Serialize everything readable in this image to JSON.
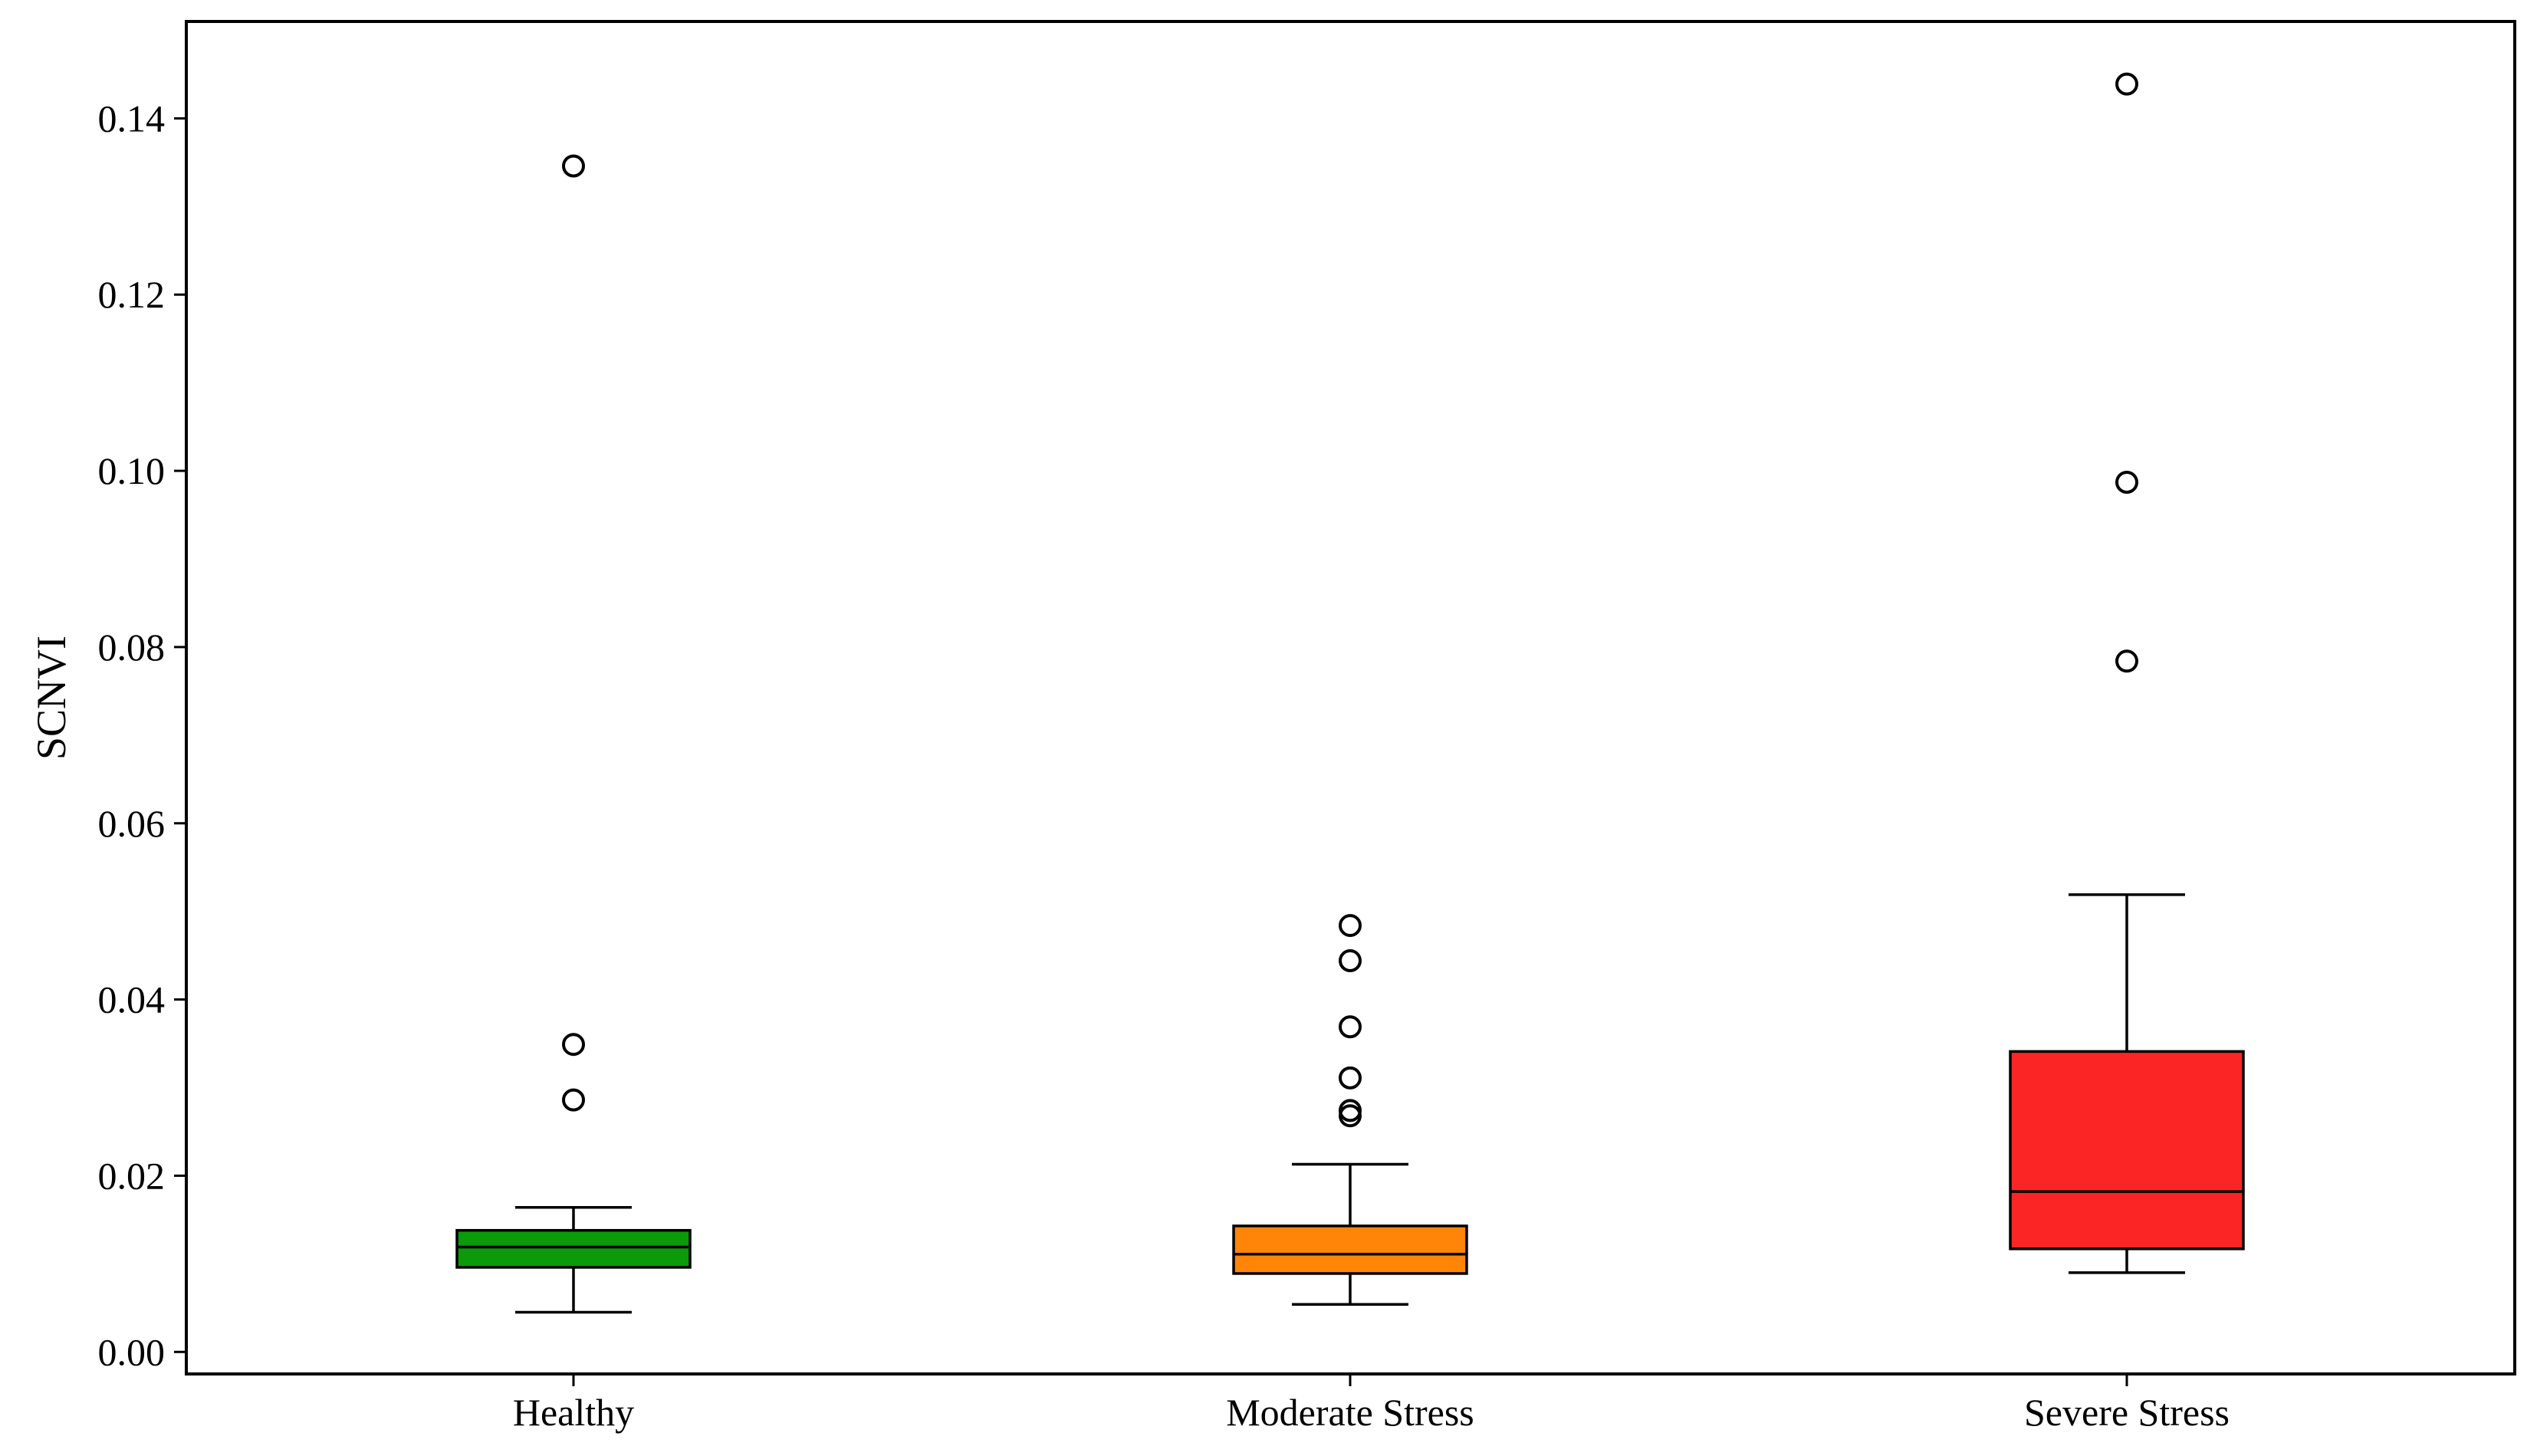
{
  "chart_data": {
    "type": "box",
    "title": "",
    "xlabel": "",
    "ylabel": "SCNVI",
    "ylim": [
      -0.0025,
      0.151
    ],
    "yticks": [
      0.0,
      0.02,
      0.04,
      0.06,
      0.08,
      0.1,
      0.12,
      0.14
    ],
    "ytick_labels": [
      "0.00",
      "0.02",
      "0.04",
      "0.06",
      "0.08",
      "0.10",
      "0.12",
      "0.14"
    ],
    "grid": false,
    "legend": "none",
    "categories": [
      "Healthy",
      "Moderate Stress",
      "Severe Stress"
    ],
    "boxes": [
      {
        "category": "Healthy",
        "color": "#0a9a0a",
        "whisker_low": 0.0045,
        "q1": 0.0096,
        "median": 0.0119,
        "q3": 0.0138,
        "whisker_high": 0.0164,
        "outliers": [
          0.1346,
          0.0349,
          0.0286
        ]
      },
      {
        "category": "Moderate Stress",
        "color": "#ff8508",
        "whisker_low": 0.0054,
        "q1": 0.0089,
        "median": 0.0111,
        "q3": 0.0143,
        "whisker_high": 0.0213,
        "outliers": [
          0.0484,
          0.0444,
          0.0369,
          0.0311,
          0.0274,
          0.0268
        ]
      },
      {
        "category": "Severe Stress",
        "color": "#fb2525",
        "whisker_low": 0.009,
        "q1": 0.0117,
        "median": 0.0182,
        "q3": 0.0341,
        "whisker_high": 0.0519,
        "outliers": [
          0.1439,
          0.0987,
          0.0784
        ]
      }
    ]
  }
}
